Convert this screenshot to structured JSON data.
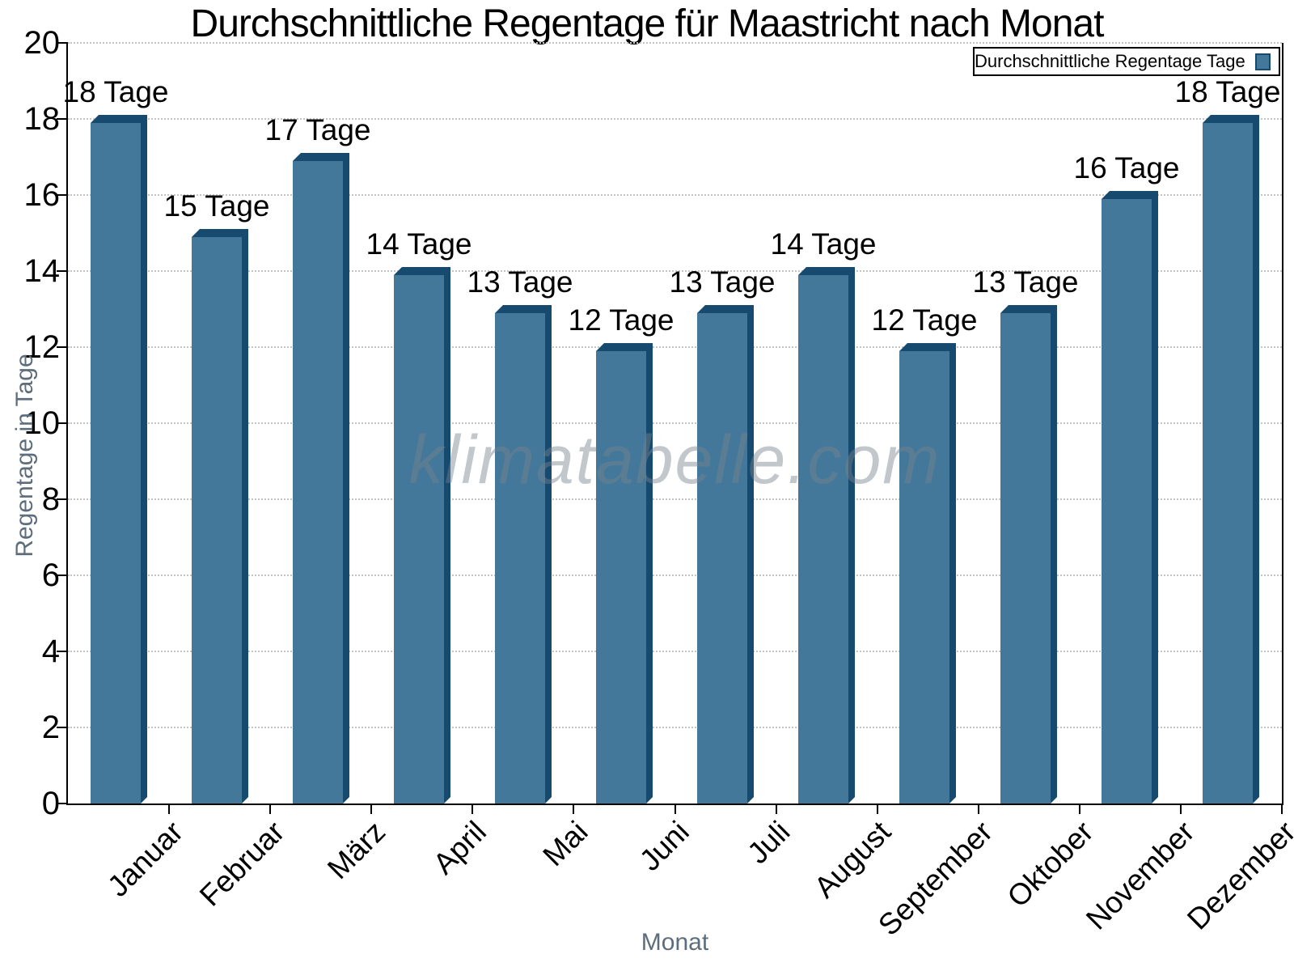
{
  "chart_data": {
    "type": "bar",
    "title": "Durchschnittliche Regentage für Maastricht nach Monat",
    "xlabel": "Monat",
    "ylabel": "Regentage in Tage",
    "categories": [
      "Januar",
      "Februar",
      "März",
      "April",
      "Mai",
      "Juni",
      "Juli",
      "August",
      "September",
      "Oktober",
      "November",
      "Dezember"
    ],
    "values": [
      18,
      15,
      17,
      14,
      13,
      12,
      13,
      14,
      12,
      13,
      16,
      18
    ],
    "bar_labels": [
      "18 Tage",
      "15 Tage",
      "17 Tage",
      "14 Tage",
      "13 Tage",
      "12 Tage",
      "13 Tage",
      "14 Tage",
      "12 Tage",
      "13 Tage",
      "16 Tage",
      "18 Tage"
    ],
    "ylim": [
      0,
      20
    ],
    "ytick_step": 2,
    "ytick_labels": [
      "0",
      "2",
      "4",
      "6",
      "8",
      "10",
      "12",
      "14",
      "16",
      "18",
      "20"
    ],
    "grid": "horizontal-dotted",
    "legend_position": "top-right",
    "bar_color": "#44789B",
    "bar_edge_color": "#164A6E",
    "grid_color": "#c4c4c4",
    "axis_title_color": "#5d6d7c"
  },
  "legend": {
    "label": "Durchschnittliche Regentage Tage"
  },
  "watermark": {
    "text": "klimatabelle.com"
  }
}
